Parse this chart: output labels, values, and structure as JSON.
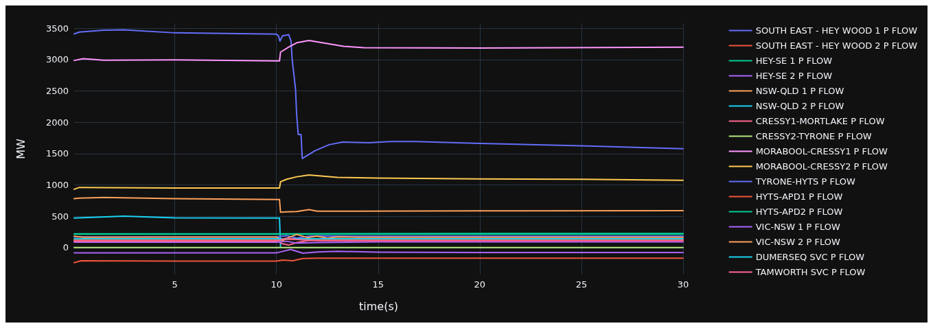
{
  "chart_data": {
    "type": "line",
    "xlabel": "time(s)",
    "ylabel": "MW",
    "xlim": [
      0.05,
      30
    ],
    "ylim": [
      -430,
      3580
    ],
    "xticks": [
      5,
      10,
      15,
      20,
      25,
      30
    ],
    "yticks": [
      0,
      500,
      1000,
      1500,
      2000,
      2500,
      3000,
      3500
    ],
    "grid": true,
    "legend": "right",
    "marker": "none",
    "line_style": "solid",
    "series": [
      {
        "name": "SOUTH EAST - HEY WOOD 1 P FLOW",
        "color": "#636efa",
        "x": [
          0.05,
          0.3,
          1.5,
          2.5,
          5,
          10,
          10.1,
          10.17,
          10.3,
          10.6,
          10.72,
          10.77,
          10.94,
          10.99,
          11.07,
          11.21,
          11.27,
          11.88,
          12.59,
          13.26,
          14.53,
          15.63,
          16.84,
          20,
          25,
          30
        ],
        "values": [
          3410,
          3440,
          3470,
          3477,
          3428,
          3407,
          3380,
          3295,
          3380,
          3400,
          3295,
          3015,
          2524,
          2142,
          1806,
          1806,
          1421,
          1544,
          1642,
          1684,
          1673,
          1694,
          1694,
          1663,
          1625,
          1579
        ]
      },
      {
        "name": "SOUTH EAST - HEY WOOD 2 P FLOW",
        "color": "#EF553B",
        "x": [
          0.05,
          0.4,
          5,
          10,
          10.3,
          10.8,
          11.3,
          12,
          20,
          30
        ],
        "values": [
          -240,
          -210,
          -217,
          -217,
          -200,
          -210,
          -175,
          -170,
          -170,
          -170
        ]
      },
      {
        "name": "HEY-SE 1 P FLOW",
        "color": "#00cc96",
        "x": [
          0.05,
          10,
          20,
          30
        ],
        "values": [
          220,
          220,
          225,
          225
        ]
      },
      {
        "name": "HEY-SE 2 P FLOW",
        "color": "#ab63fa",
        "x": [
          0.05,
          5,
          10,
          10.2,
          10.7,
          11.3,
          12,
          13,
          15,
          20,
          30
        ],
        "values": [
          -84,
          -84,
          -84,
          -70,
          -30,
          -90,
          -70,
          -60,
          -75,
          -80,
          -80
        ]
      },
      {
        "name": "NSW-QLD 1 P FLOW",
        "color": "#FFA15A",
        "x": [
          0.05,
          0.3,
          1.5,
          5,
          10.15,
          10.2,
          10.5,
          11,
          11.6,
          12,
          14,
          20,
          30
        ],
        "values": [
          780,
          790,
          800,
          780,
          767,
          564,
          570,
          575,
          605,
          580,
          580,
          585,
          590
        ]
      },
      {
        "name": "NSW-QLD 2 P FLOW",
        "color": "#19d3f3",
        "x": [
          0.05,
          2.5,
          5,
          10.15,
          10.2
        ],
        "values": [
          470,
          500,
          475,
          470,
          20
        ]
      },
      {
        "name": "CRESSY1-MORTLAKE P FLOW",
        "color": "#FF6692",
        "x": [
          0.05,
          10,
          10.3,
          10.6,
          11,
          11.5,
          12,
          15,
          20,
          30
        ],
        "values": [
          110,
          110,
          60,
          40,
          80,
          110,
          120,
          120,
          120,
          120
        ]
      },
      {
        "name": "CRESSY2-TYRONE P FLOW",
        "color": "#B6E880",
        "x": [
          0.05,
          10,
          20,
          30
        ],
        "values": [
          0,
          0,
          0,
          0
        ]
      },
      {
        "name": "MORABOOL-CRESSY1 P FLOW",
        "color": "#FF97FF",
        "x": [
          0.05,
          0.5,
          1.5,
          5,
          10,
          10.15,
          10.2,
          10.6,
          11,
          11.6,
          13.3,
          14.3,
          20,
          30
        ],
        "values": [
          2987,
          3015,
          2990,
          2997,
          2980,
          2980,
          3120,
          3200,
          3270,
          3305,
          3214,
          3190,
          3186,
          3200
        ]
      },
      {
        "name": "MORABOOL-CRESSY2 P FLOW",
        "color": "#FECB52",
        "x": [
          0.05,
          0.3,
          5,
          10.15,
          10.2,
          10.5,
          11,
          11.6,
          13,
          15,
          20,
          25,
          30
        ],
        "values": [
          930,
          960,
          950,
          950,
          1050,
          1090,
          1130,
          1159,
          1120,
          1110,
          1096,
          1090,
          1075
        ]
      },
      {
        "name": "TYRONE-HYTS P FLOW",
        "color": "#636efa",
        "x": [
          0.05,
          10,
          10.5,
          11,
          11.6,
          12,
          14,
          20,
          30
        ],
        "values": [
          170,
          170,
          190,
          150,
          180,
          185,
          180,
          180,
          180
        ]
      },
      {
        "name": "HYTS-APD1 P FLOW",
        "color": "#EF553B",
        "x": [
          0.05,
          10,
          20,
          30
        ],
        "values": [
          130,
          130,
          130,
          130
        ]
      },
      {
        "name": "HYTS-APD2 P FLOW",
        "color": "#00cc96",
        "x": [
          0.05,
          10,
          20,
          30
        ],
        "values": [
          215,
          215,
          215,
          215
        ]
      },
      {
        "name": "VIC-NSW 1 P FLOW",
        "color": "#ab63fa",
        "x": [
          0.05,
          10,
          10.5,
          11,
          12,
          15,
          20,
          30
        ],
        "values": [
          84,
          84,
          100,
          70,
          80,
          90,
          90,
          90
        ]
      },
      {
        "name": "VIC-NSW 2 P FLOW",
        "color": "#FFA15A",
        "x": [
          0.05,
          0.5,
          10,
          10.3,
          10.6,
          11,
          11.5,
          12,
          12.5,
          13,
          14,
          20,
          30
        ],
        "values": [
          180,
          165,
          168,
          110,
          160,
          210,
          160,
          180,
          150,
          170,
          165,
          165,
          165
        ]
      },
      {
        "name": "DUMERSEQ SVC P FLOW",
        "color": "#19d3f3",
        "x": [
          0.05,
          10,
          20,
          30
        ],
        "values": [
          140,
          140,
          140,
          140
        ]
      },
      {
        "name": "TAMWORTH SVC P FLOW",
        "color": "#FF6692",
        "x": [
          0.05,
          10,
          10.5,
          11,
          12,
          20,
          30
        ],
        "values": [
          102,
          102,
          150,
          130,
          110,
          110,
          110
        ]
      }
    ]
  }
}
